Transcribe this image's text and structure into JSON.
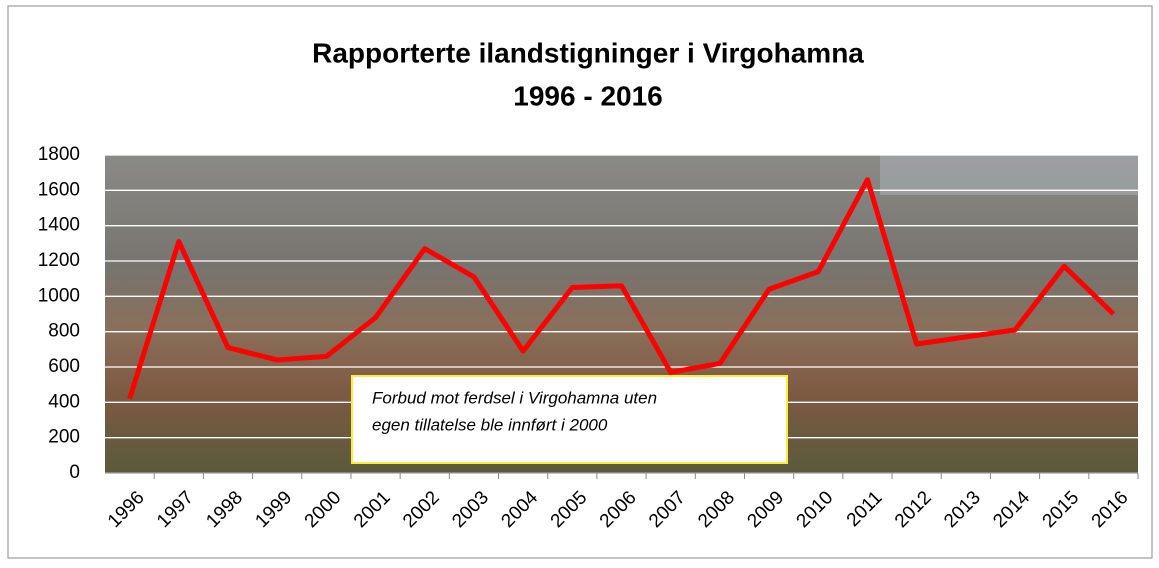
{
  "chart_data": {
    "type": "line",
    "title": [
      "Rapporterte ilandstigninger i  Virgohamna",
      "1996 - 2016"
    ],
    "categories": [
      "1996",
      "1997",
      "1998",
      "1999",
      "2000",
      "2001",
      "2002",
      "2003",
      "2004",
      "2005",
      "2006",
      "2007",
      "2008",
      "2009",
      "2010",
      "2011",
      "2012",
      "2013",
      "2014",
      "2015",
      "2016"
    ],
    "series": [
      {
        "color": "#ff0000",
        "values": [
          420,
          1310,
          710,
          640,
          660,
          880,
          1270,
          1110,
          690,
          1050,
          1060,
          570,
          620,
          1040,
          1140,
          1660,
          730,
          770,
          810,
          1170,
          900
        ]
      }
    ],
    "ylim": [
      0,
      1800
    ],
    "yticks": [
      0,
      200,
      400,
      600,
      800,
      1000,
      1200,
      1400,
      1600,
      1800
    ],
    "grid": true,
    "annotation": [
      "Forbud mot ferdsel i Virgohamna uten",
      "egen tillatelse ble innført i 2000"
    ]
  }
}
